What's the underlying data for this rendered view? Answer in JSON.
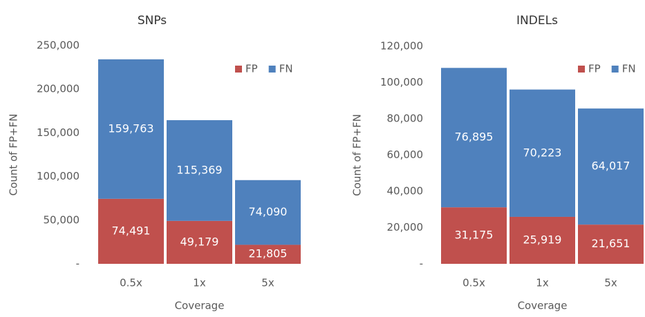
{
  "chart_data": [
    {
      "type": "stacked-bar",
      "title": "SNPs",
      "x_label": "Coverage",
      "y_label": "Count of FP+FN",
      "categories": [
        "0.5x",
        "1x",
        "5x"
      ],
      "series": [
        {
          "name": "FP",
          "color": "#c0504d",
          "values": [
            74491,
            49179,
            21805
          ],
          "value_labels": [
            "74,491",
            "49,179",
            "21,805"
          ]
        },
        {
          "name": "FN",
          "color": "#4f81bd",
          "values": [
            159763,
            115369,
            74090
          ],
          "value_labels": [
            "159,763",
            "115,369",
            "74,090"
          ]
        }
      ],
      "ylim": [
        0,
        250000
      ],
      "yticks": [
        {
          "value": 0,
          "label": "-"
        },
        {
          "value": 50000,
          "label": "50,000"
        },
        {
          "value": 100000,
          "label": "100,000"
        },
        {
          "value": 150000,
          "label": "150,000"
        },
        {
          "value": 200000,
          "label": "200,000"
        },
        {
          "value": 250000,
          "label": "250,000"
        }
      ],
      "legend": "top-right"
    },
    {
      "type": "stacked-bar",
      "title": "INDELs",
      "x_label": "Coverage",
      "y_label": "Count of FP+FN",
      "categories": [
        "0.5x",
        "1x",
        "5x"
      ],
      "series": [
        {
          "name": "FP",
          "color": "#c0504d",
          "values": [
            31175,
            25919,
            21651
          ],
          "value_labels": [
            "31,175",
            "25,919",
            "21,651"
          ]
        },
        {
          "name": "FN",
          "color": "#4f81bd",
          "values": [
            76895,
            70223,
            64017
          ],
          "value_labels": [
            "76,895",
            "70,223",
            "64,017"
          ]
        }
      ],
      "ylim": [
        0,
        120000
      ],
      "yticks": [
        {
          "value": 0,
          "label": "-"
        },
        {
          "value": 20000,
          "label": "20,000"
        },
        {
          "value": 40000,
          "label": "40,000"
        },
        {
          "value": 60000,
          "label": "60,000"
        },
        {
          "value": 80000,
          "label": "80,000"
        },
        {
          "value": 100000,
          "label": "100,000"
        },
        {
          "value": 120000,
          "label": "120,000"
        }
      ],
      "legend": "top-right"
    }
  ]
}
